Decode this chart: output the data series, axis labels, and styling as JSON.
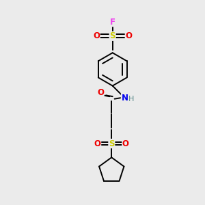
{
  "background_color": "#ebebeb",
  "atom_colors": {
    "C": "#000000",
    "H": "#5a8a8a",
    "N": "#0000ee",
    "O": "#ee0000",
    "S": "#cccc00",
    "F": "#ee44ee"
  },
  "bond_color": "#000000",
  "bond_width": 1.4,
  "font_size": 8.5,
  "figsize": [
    3.0,
    3.0
  ],
  "dpi": 100
}
